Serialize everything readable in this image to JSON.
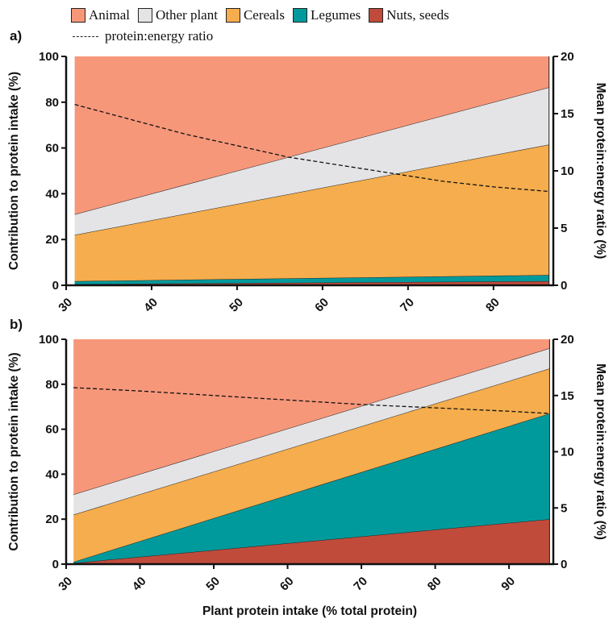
{
  "legend": {
    "items": [
      {
        "name": "Animal",
        "color": "#f7977a"
      },
      {
        "name": "Other plant",
        "color": "#e4e4e6"
      },
      {
        "name": "Cereals",
        "color": "#f5ad4d"
      },
      {
        "name": "Legumes",
        "color": "#009a9c"
      },
      {
        "name": "Nuts, seeds",
        "color": "#c14b3b"
      }
    ],
    "ratio_label": "protein:energy ratio"
  },
  "xlabel": "Plant protein intake (% total protein)",
  "chart_data": [
    {
      "panel": "a)",
      "type": "area",
      "stacked": true,
      "x": [
        31,
        86.5
      ],
      "xlim": [
        30,
        87
      ],
      "xticks": [
        30,
        40,
        50,
        60,
        70,
        80
      ],
      "ylim": [
        0,
        100
      ],
      "yticks": [
        0,
        20,
        40,
        60,
        80,
        100
      ],
      "ylabel": "Contribution to protein intake (%)",
      "y2lim": [
        0,
        20
      ],
      "y2ticks": [
        0,
        5,
        10,
        15,
        20
      ],
      "y2label": "Mean protein:energy ratio (%)",
      "series": [
        {
          "name": "Nuts, seeds",
          "values": [
            0.5,
            1.8
          ]
        },
        {
          "name": "Legumes",
          "values": [
            1.3,
            2.7
          ]
        },
        {
          "name": "Cereals",
          "values": [
            20.2,
            57.0
          ]
        },
        {
          "name": "Other plant",
          "values": [
            9.0,
            25.0
          ]
        },
        {
          "name": "Animal",
          "values": [
            69.0,
            13.5
          ]
        }
      ],
      "ratio_line": {
        "name": "protein:energy ratio",
        "x": [
          31,
          37,
          44,
          50,
          56,
          62,
          68,
          74,
          80,
          86.5
        ],
        "values": [
          15.8,
          14.6,
          13.2,
          12.2,
          11.2,
          10.5,
          9.8,
          9.1,
          8.6,
          8.2
        ]
      }
    },
    {
      "panel": "b)",
      "type": "area",
      "stacked": true,
      "x": [
        31,
        95.5
      ],
      "xlim": [
        30,
        96
      ],
      "xticks": [
        30,
        40,
        50,
        60,
        70,
        80,
        90
      ],
      "ylim": [
        0,
        100
      ],
      "yticks": [
        0,
        20,
        40,
        60,
        80,
        100
      ],
      "ylabel": "Contribution to protein intake (%)",
      "y2lim": [
        0,
        20
      ],
      "y2ticks": [
        0,
        5,
        10,
        15,
        20
      ],
      "y2label": "Mean protein:energy ratio (%)",
      "series": [
        {
          "name": "Nuts, seeds",
          "values": [
            0.5,
            20.0
          ]
        },
        {
          "name": "Legumes",
          "values": [
            0.5,
            47.0
          ]
        },
        {
          "name": "Cereals",
          "values": [
            21.0,
            20.0
          ]
        },
        {
          "name": "Other plant",
          "values": [
            9.0,
            9.0
          ]
        },
        {
          "name": "Animal",
          "values": [
            69.0,
            4.0
          ]
        }
      ],
      "ratio_line": {
        "name": "protein:energy ratio",
        "x": [
          31,
          40,
          50,
          60,
          70,
          80,
          90,
          95.5
        ],
        "values": [
          15.7,
          15.4,
          15.0,
          14.6,
          14.2,
          13.9,
          13.6,
          13.4
        ]
      }
    }
  ]
}
